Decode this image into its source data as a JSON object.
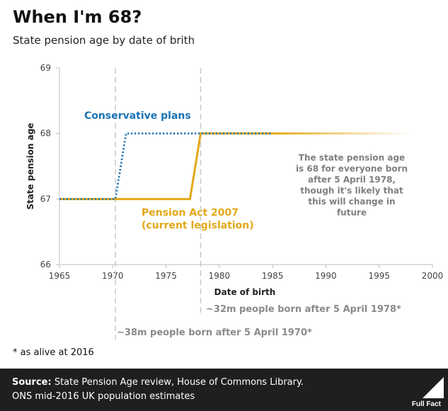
{
  "header": {
    "title": "When I'm 68?",
    "subtitle": "State pension age by date of brith"
  },
  "chart_data": {
    "type": "line",
    "xlabel": "Date of birth",
    "ylabel": "State pension age",
    "xlim": [
      1965,
      2000
    ],
    "ylim": [
      66,
      69
    ],
    "x_ticks": [
      1965,
      1970,
      1975,
      1980,
      1985,
      1990,
      1995,
      2000
    ],
    "y_ticks": [
      66,
      67,
      68,
      69
    ],
    "grid": false,
    "series": [
      {
        "name": "Conservative plans",
        "color": "#1a73b5",
        "style": "dotted",
        "x": [
          1965,
          1970.25,
          1971.25,
          1985
        ],
        "y": [
          67,
          67,
          68,
          68
        ]
      },
      {
        "name": "Pension Act 2007\n(current legislation)",
        "color": "#e3a817",
        "style": "solid",
        "x": [
          1965,
          1977.25,
          1978.25,
          1985
        ],
        "y": [
          67,
          67,
          68,
          68
        ]
      }
    ],
    "fade_series": {
      "color": "#e3a817",
      "x": [
        1985,
        1998
      ],
      "y": [
        68,
        68
      ]
    },
    "reference_lines": [
      {
        "x": 1970.25,
        "label": "~38m people born after 5 April 1970*"
      },
      {
        "x": 1978.25,
        "label": "~32m people born after 5 April 1978*"
      }
    ],
    "annotation": "The state pension age\nis 68 for everyone born\nafter 5 April 1978,\nthough it's likely that\nthis will change in\nfuture"
  },
  "footnote": "* as alive at 2016",
  "footer": {
    "source_label": "Source:",
    "source_line1": " State Pension Age review, House of Commons Library.",
    "source_line2": "ONS mid-2016 UK population estimates",
    "logo_text": "Full Fact"
  }
}
